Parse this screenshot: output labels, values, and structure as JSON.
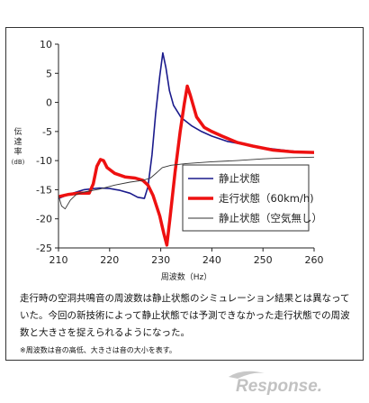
{
  "chart_data": {
    "type": "line",
    "xlabel": "周波数（Hz）",
    "ylabel_lines": [
      "伝",
      "達",
      "率",
      "(dB)"
    ],
    "xlim": [
      210,
      260
    ],
    "ylim": [
      -25,
      10
    ],
    "x_ticks": [
      210,
      220,
      230,
      240,
      250,
      260
    ],
    "y_ticks": [
      10,
      5,
      0,
      -5,
      -10,
      -15,
      -20,
      -25
    ],
    "grid": false,
    "legend_position": "right",
    "series": [
      {
        "name": "静止状態",
        "color": "#1a1a8c",
        "width": 1.6,
        "points": [
          [
            210,
            -16.5
          ],
          [
            212,
            -15.8
          ],
          [
            215,
            -15.0
          ],
          [
            218,
            -14.7
          ],
          [
            220,
            -14.8
          ],
          [
            222,
            -15.1
          ],
          [
            224,
            -15.6
          ],
          [
            225.5,
            -16.3
          ],
          [
            226.8,
            -16.5
          ],
          [
            227.5,
            -14.5
          ],
          [
            228.3,
            -9.0
          ],
          [
            229,
            -2.0
          ],
          [
            229.8,
            4.5
          ],
          [
            230.4,
            8.5
          ],
          [
            231,
            6.0
          ],
          [
            231.7,
            2.0
          ],
          [
            232.5,
            -0.5
          ],
          [
            234,
            -2.6
          ],
          [
            236,
            -4.0
          ],
          [
            238,
            -5.0
          ],
          [
            240,
            -5.8
          ],
          [
            243,
            -6.7
          ],
          [
            246,
            -7.2
          ],
          [
            250,
            -7.8
          ],
          [
            255,
            -8.3
          ],
          [
            260,
            -8.7
          ]
        ]
      },
      {
        "name": "走行状態（60km/h)",
        "color": "#ee1111",
        "width": 3.5,
        "points": [
          [
            210,
            -16.2
          ],
          [
            212,
            -15.8
          ],
          [
            214,
            -15.6
          ],
          [
            216,
            -15.6
          ],
          [
            216.8,
            -14.0
          ],
          [
            217.5,
            -11.0
          ],
          [
            218.2,
            -9.8
          ],
          [
            218.8,
            -10.0
          ],
          [
            219.5,
            -11.2
          ],
          [
            221,
            -12.2
          ],
          [
            223,
            -12.8
          ],
          [
            225,
            -13.0
          ],
          [
            226.5,
            -13.4
          ],
          [
            227.5,
            -14.2
          ],
          [
            228.5,
            -16.0
          ],
          [
            229.8,
            -19.5
          ],
          [
            230.6,
            -22.5
          ],
          [
            231.2,
            -24.5
          ],
          [
            231.8,
            -20.0
          ],
          [
            232.8,
            -12.0
          ],
          [
            233.8,
            -5.0
          ],
          [
            234.6,
            -0.3
          ],
          [
            235.2,
            2.8
          ],
          [
            235.8,
            1.2
          ],
          [
            237,
            -2.5
          ],
          [
            238.5,
            -4.3
          ],
          [
            240,
            -5.0
          ],
          [
            242,
            -5.8
          ],
          [
            245,
            -6.9
          ],
          [
            248,
            -7.5
          ],
          [
            252,
            -8.2
          ],
          [
            256,
            -8.5
          ],
          [
            260,
            -8.6
          ]
        ]
      },
      {
        "name": "静止状態（空気無し）",
        "color": "#333333",
        "width": 0.9,
        "points": [
          [
            210,
            -16.0
          ],
          [
            210.6,
            -17.8
          ],
          [
            211.3,
            -18.3
          ],
          [
            212.3,
            -16.8
          ],
          [
            213.5,
            -15.8
          ],
          [
            215,
            -15.4
          ],
          [
            218,
            -14.9
          ],
          [
            221,
            -14.2
          ],
          [
            224,
            -13.7
          ],
          [
            226.5,
            -13.4
          ],
          [
            228,
            -13.0
          ],
          [
            229.3,
            -12.0
          ],
          [
            230.3,
            -11.2
          ],
          [
            232,
            -10.8
          ],
          [
            235,
            -10.5
          ],
          [
            240,
            -10.2
          ],
          [
            245,
            -10.0
          ],
          [
            250,
            -9.7
          ],
          [
            255,
            -9.5
          ],
          [
            260,
            -9.4
          ]
        ]
      }
    ]
  },
  "caption": "走行時の空洞共鳴音の周波数は静止状態のシミュレーション結果とは異なっていた。今回の新技術によって静止状態では予測できなかった走行状態での周波数と大きさを捉えられるようになった。",
  "note": "※周波数は音の高低、大きさは音の大小を表す。",
  "watermark": "Response."
}
